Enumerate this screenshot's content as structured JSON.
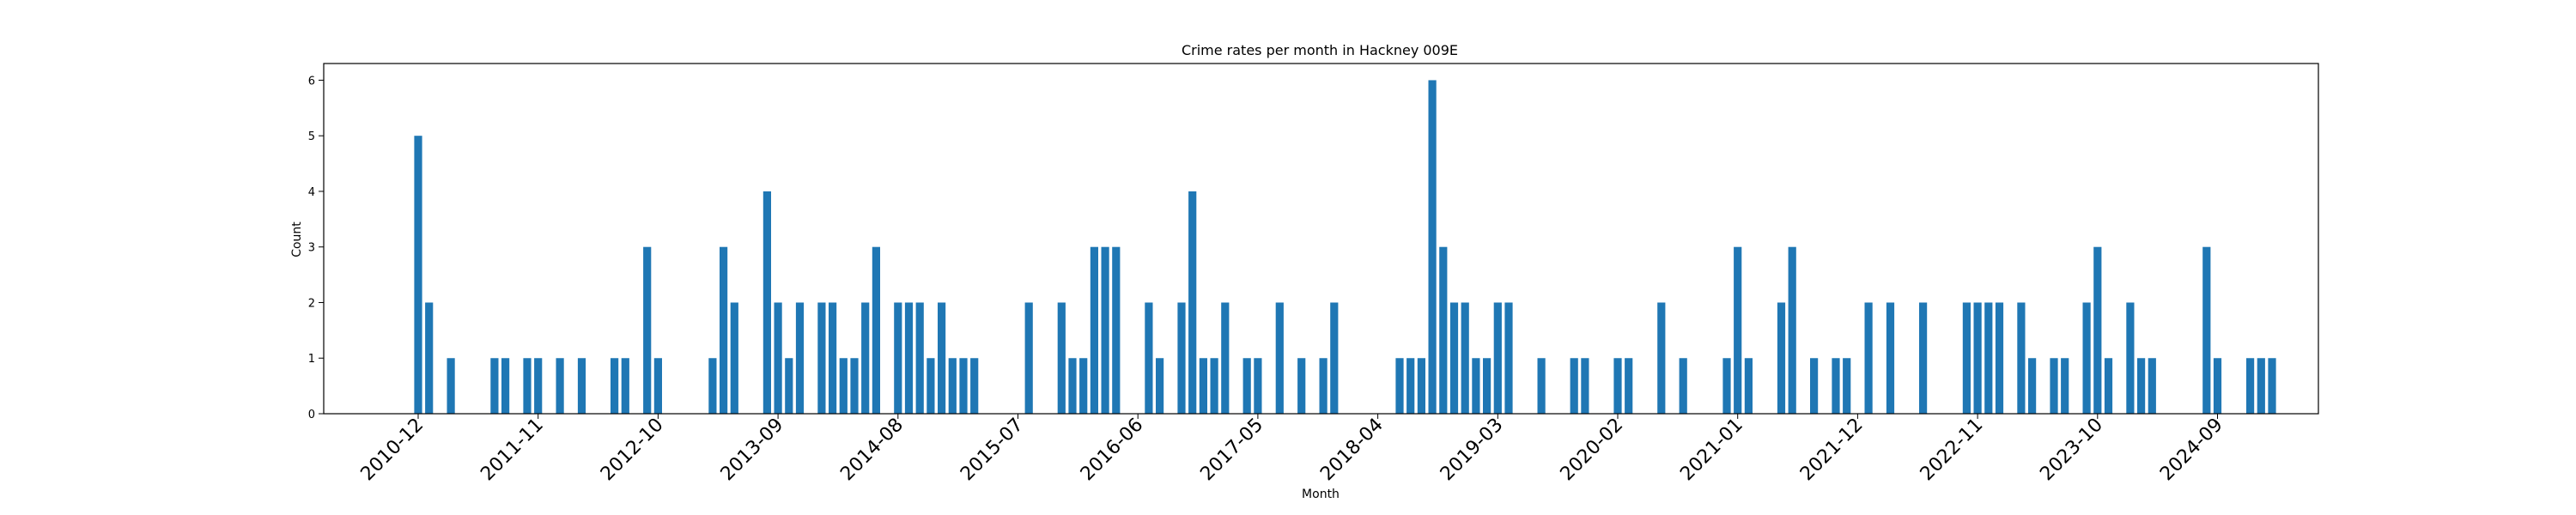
{
  "chart_data": {
    "type": "bar",
    "title": "Crime rates per month in Hackney 009E",
    "xlabel": "Month",
    "ylabel": "Count",
    "ylim": [
      0,
      6.3
    ],
    "yticks": [
      0,
      1,
      2,
      3,
      4,
      5,
      6
    ],
    "grid": false,
    "bar_color": "#1f77b4",
    "xtick_labels": [
      "2010-12",
      "2011-11",
      "2012-10",
      "2013-09",
      "2014-08",
      "2015-07",
      "2016-06",
      "2017-05",
      "2018-04",
      "2019-03",
      "2020-02",
      "2021-01",
      "2021-12",
      "2022-11",
      "2023-10",
      "2024-09"
    ],
    "categories": [
      "2010-12",
      "2011-01",
      "2011-03",
      "2011-07",
      "2011-08",
      "2011-10",
      "2011-11",
      "2012-01",
      "2012-03",
      "2012-06",
      "2012-07",
      "2012-09",
      "2012-10",
      "2013-03",
      "2013-04",
      "2013-05",
      "2013-08",
      "2013-09",
      "2013-10",
      "2013-11",
      "2014-01",
      "2014-02",
      "2014-03",
      "2014-04",
      "2014-05",
      "2014-06",
      "2014-08",
      "2014-09",
      "2014-10",
      "2014-11",
      "2014-12",
      "2015-01",
      "2015-02",
      "2015-03",
      "2015-08",
      "2015-11",
      "2015-12",
      "2016-01",
      "2016-02",
      "2016-03",
      "2016-04",
      "2016-07",
      "2016-08",
      "2016-10",
      "2016-11",
      "2016-12",
      "2017-01",
      "2017-02",
      "2017-04",
      "2017-05",
      "2017-07",
      "2017-09",
      "2017-11",
      "2017-12",
      "2018-06",
      "2018-07",
      "2018-08",
      "2018-09",
      "2018-10",
      "2018-11",
      "2018-12",
      "2019-01",
      "2019-02",
      "2019-03",
      "2019-04",
      "2019-07",
      "2019-10",
      "2019-11",
      "2020-02",
      "2020-03",
      "2020-06",
      "2020-08",
      "2020-12",
      "2021-01",
      "2021-02",
      "2021-05",
      "2021-06",
      "2021-08",
      "2021-10",
      "2021-11",
      "2022-01",
      "2022-03",
      "2022-06",
      "2022-10",
      "2022-11",
      "2022-12",
      "2023-01",
      "2023-03",
      "2023-04",
      "2023-06",
      "2023-07",
      "2023-09",
      "2023-10",
      "2023-11",
      "2024-01",
      "2024-02",
      "2024-03",
      "2024-08",
      "2024-09",
      "2024-12",
      "2025-01",
      "2025-02"
    ],
    "values": [
      5,
      2,
      1,
      1,
      1,
      1,
      1,
      1,
      1,
      1,
      1,
      3,
      1,
      1,
      3,
      2,
      4,
      2,
      1,
      2,
      2,
      2,
      1,
      1,
      2,
      3,
      2,
      2,
      2,
      1,
      2,
      1,
      1,
      1,
      2,
      2,
      1,
      1,
      3,
      3,
      3,
      2,
      1,
      2,
      4,
      1,
      1,
      2,
      1,
      1,
      2,
      1,
      1,
      2,
      1,
      1,
      1,
      6,
      3,
      2,
      2,
      1,
      1,
      2,
      2,
      1,
      1,
      1,
      1,
      1,
      2,
      1,
      1,
      3,
      1,
      2,
      3,
      1,
      1,
      1,
      2,
      2,
      2,
      2,
      2,
      2,
      2,
      2,
      1,
      1,
      1,
      2,
      3,
      1,
      2,
      1,
      1,
      3,
      1,
      1,
      1,
      1
    ]
  }
}
